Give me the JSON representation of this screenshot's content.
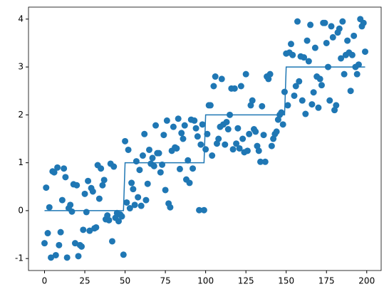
{
  "chart_data": {
    "type": "scatter",
    "color": "#1f77b4",
    "x": [
      0,
      1,
      2,
      3,
      4,
      5,
      6,
      7,
      8,
      9,
      10,
      11,
      12,
      13,
      14,
      15,
      16,
      17,
      18,
      19,
      20,
      21,
      22,
      23,
      24,
      25,
      26,
      27,
      28,
      29,
      30,
      31,
      32,
      33,
      34,
      35,
      36,
      37,
      38,
      39,
      40,
      41,
      42,
      43,
      44,
      45,
      46,
      47,
      48,
      49,
      50,
      51,
      52,
      53,
      54,
      55,
      56,
      57,
      58,
      59,
      60,
      61,
      62,
      63,
      64,
      65,
      66,
      67,
      68,
      69,
      70,
      71,
      72,
      73,
      74,
      75,
      76,
      77,
      78,
      79,
      80,
      81,
      82,
      83,
      84,
      85,
      86,
      87,
      88,
      89,
      90,
      91,
      92,
      93,
      94,
      95,
      96,
      97,
      98,
      99,
      100,
      101,
      102,
      103,
      104,
      105,
      106,
      107,
      108,
      109,
      110,
      111,
      112,
      113,
      114,
      115,
      116,
      117,
      118,
      119,
      120,
      121,
      122,
      123,
      124,
      125,
      126,
      127,
      128,
      129,
      130,
      131,
      132,
      133,
      134,
      135,
      136,
      137,
      138,
      139,
      140,
      141,
      142,
      143,
      144,
      145,
      146,
      147,
      148,
      149,
      150,
      151,
      152,
      153,
      154,
      155,
      156,
      157,
      158,
      159,
      160,
      161,
      162,
      163,
      164,
      165,
      166,
      167,
      168,
      169,
      170,
      171,
      172,
      173,
      174,
      175,
      176,
      177,
      178,
      179,
      180,
      181,
      182,
      183,
      184,
      185,
      186,
      187,
      188,
      189,
      190,
      191,
      192,
      193,
      194,
      195,
      196,
      197,
      198,
      199
    ],
    "values": [
      -0.68,
      0.48,
      -0.47,
      0.07,
      -0.98,
      0.82,
      0.8,
      -0.93,
      0.9,
      -0.72,
      -0.45,
      0.22,
      0.88,
      0.7,
      -0.98,
      0.05,
      0.12,
      -0.02,
      0.55,
      -0.68,
      0.53,
      -0.95,
      -0.72,
      -0.75,
      -0.4,
      0.35,
      -0.03,
      0.62,
      -0.42,
      0.47,
      0.4,
      -0.37,
      -0.35,
      0.95,
      0.25,
      0.88,
      0.53,
      0.64,
      -0.18,
      -0.1,
      -0.2,
      0.98,
      -0.64,
      0.92,
      -0.15,
      -0.05,
      -0.22,
      -0.08,
      -0.12,
      -0.92,
      1.45,
      0.17,
      1.27,
      0.05,
      0.58,
      0.45,
      0.12,
      1.03,
      0.28,
      0.85,
      0.1,
      1.15,
      1.6,
      0.22,
      0.56,
      1.27,
      0.98,
      1.1,
      0.93,
      1.78,
      1.2,
      1.2,
      0.8,
      0.96,
      1.58,
      0.43,
      1.88,
      0.15,
      0.07,
      1.25,
      1.75,
      1.32,
      1.3,
      1.92,
      0.87,
      1.62,
      1.5,
      1.78,
      0.65,
      1.05,
      0.58,
      1.9,
      0.88,
      1.88,
      1.72,
      1.55,
      0.01,
      1.38,
      1.8,
      0.01,
      1.28,
      1.6,
      2.2,
      2.2,
      1.15,
      2.6,
      2.8,
      1.4,
      1.5,
      1.75,
      2.75,
      1.8,
      1.38,
      1.85,
      1.7,
      2.0,
      2.55,
      1.28,
      2.55,
      1.4,
      1.72,
      1.3,
      2.6,
      1.5,
      1.22,
      2.85,
      1.25,
      1.6,
      2.2,
      2.3,
      1.7,
      1.65,
      1.35,
      1.25,
      1.02,
      2.18,
      1.58,
      1.02,
      2.8,
      2.75,
      2.85,
      1.35,
      1.5,
      1.6,
      1.65,
      1.9,
      2.0,
      2.05,
      1.8,
      2.48,
      3.28,
      2.2,
      3.3,
      3.48,
      3.25,
      2.4,
      2.6,
      3.95,
      2.7,
      3.22,
      2.3,
      3.2,
      2.02,
      3.55,
      3.12,
      3.88,
      2.22,
      2.47,
      3.4,
      2.8,
      2.15,
      2.75,
      2.62,
      3.92,
      3.92,
      3.5,
      3.0,
      2.3,
      3.85,
      3.62,
      2.1,
      2.2,
      3.72,
      3.8,
      3.18,
      3.95,
      2.85,
      3.25,
      3.55,
      3.3,
      2.5,
      3.25,
      3.65,
      3.0,
      2.85,
      3.05,
      4.0,
      3.85,
      3.92,
      3.32
    ],
    "overlay": {
      "type": "line",
      "color": "#1f77b4",
      "x": [
        0,
        49,
        50,
        99,
        100,
        149,
        150,
        199
      ],
      "values": [
        0,
        0,
        1,
        1,
        2,
        2,
        3,
        3
      ]
    },
    "xlim": [
      -9.95,
      208.95
    ],
    "ylim": [
      -1.25,
      4.25
    ],
    "xticks": [
      0,
      25,
      50,
      75,
      100,
      125,
      150,
      175,
      200
    ],
    "yticks": [
      -1,
      0,
      1,
      2,
      3,
      4
    ]
  }
}
